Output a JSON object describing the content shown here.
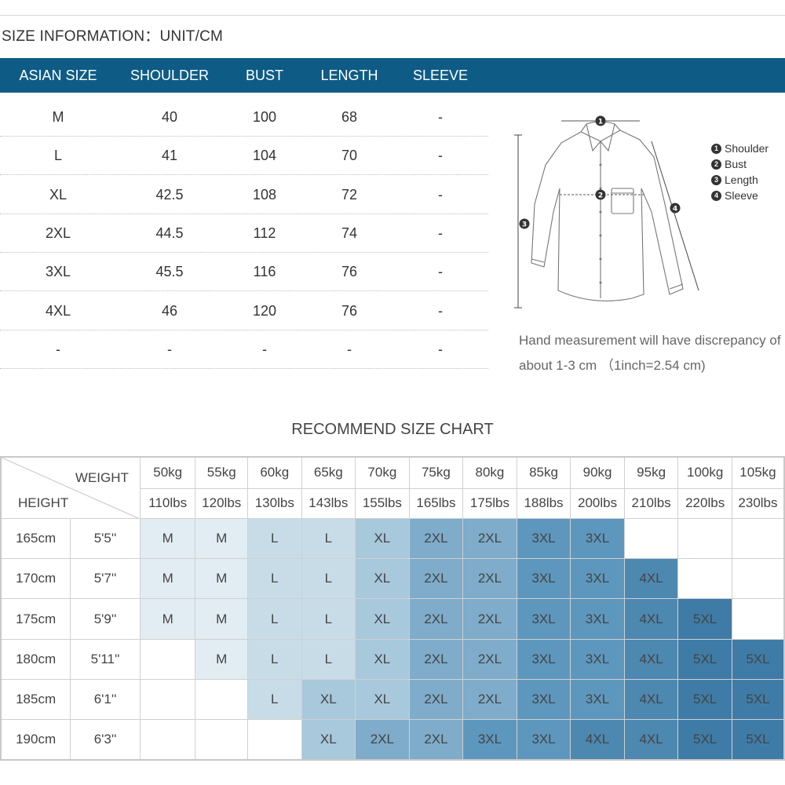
{
  "size_info": {
    "title": "SIZE INFORMATION：UNIT/CM",
    "headers": [
      "ASIAN SIZE",
      "SHOULDER",
      "BUST",
      "LENGTH",
      "SLEEVE"
    ],
    "rows": [
      [
        "M",
        "40",
        "100",
        "68",
        "-"
      ],
      [
        "L",
        "41",
        "104",
        "70",
        "-"
      ],
      [
        "XL",
        "42.5",
        "108",
        "72",
        "-"
      ],
      [
        "2XL",
        "44.5",
        "112",
        "74",
        "-"
      ],
      [
        "3XL",
        "45.5",
        "116",
        "76",
        "-"
      ],
      [
        "4XL",
        "46",
        "120",
        "76",
        "-"
      ],
      [
        "-",
        "-",
        "-",
        "-",
        "-"
      ]
    ]
  },
  "diagram": {
    "labels": [
      {
        "num": "1",
        "text": "Shoulder"
      },
      {
        "num": "2",
        "text": "Bust"
      },
      {
        "num": "3",
        "text": "Length"
      },
      {
        "num": "4",
        "text": "Sleeve"
      }
    ]
  },
  "note": {
    "line1": "Hand measurement will have discrepancy of",
    "line2": "about 1-3 cm （1inch=2.54 cm)"
  },
  "recommend": {
    "title": "RECOMMEND SIZE CHART",
    "weight_label": "WEIGHT",
    "height_label": "HEIGHT",
    "weights_kg": [
      "50kg",
      "55kg",
      "60kg",
      "65kg",
      "70kg",
      "75kg",
      "80kg",
      "85kg",
      "90kg",
      "95kg",
      "100kg",
      "105kg"
    ],
    "weights_lbs": [
      "110lbs",
      "120lbs",
      "130lbs",
      "143lbs",
      "155lbs",
      "165lbs",
      "175lbs",
      "188lbs",
      "200lbs",
      "210lbs",
      "220lbs",
      "230lbs"
    ],
    "rows": [
      {
        "cm": "165cm",
        "ft": "5'5''",
        "sizes": [
          "M",
          "M",
          "L",
          "L",
          "XL",
          "2XL",
          "2XL",
          "3XL",
          "3XL",
          "",
          "",
          ""
        ]
      },
      {
        "cm": "170cm",
        "ft": "5'7''",
        "sizes": [
          "M",
          "M",
          "L",
          "L",
          "XL",
          "2XL",
          "2XL",
          "3XL",
          "3XL",
          "4XL",
          "",
          ""
        ]
      },
      {
        "cm": "175cm",
        "ft": "5'9''",
        "sizes": [
          "M",
          "M",
          "L",
          "L",
          "XL",
          "2XL",
          "2XL",
          "3XL",
          "3XL",
          "4XL",
          "5XL",
          ""
        ]
      },
      {
        "cm": "180cm",
        "ft": "5'11''",
        "sizes": [
          "",
          "M",
          "L",
          "L",
          "XL",
          "2XL",
          "2XL",
          "3XL",
          "3XL",
          "4XL",
          "5XL",
          "5XL"
        ]
      },
      {
        "cm": "185cm",
        "ft": "6'1''",
        "sizes": [
          "",
          "",
          "L",
          "XL",
          "XL",
          "2XL",
          "2XL",
          "3XL",
          "3XL",
          "4XL",
          "5XL",
          "5XL"
        ]
      },
      {
        "cm": "190cm",
        "ft": "6'3''",
        "sizes": [
          "",
          "",
          "",
          "XL",
          "2XL",
          "2XL",
          "3XL",
          "3XL",
          "4XL",
          "4XL",
          "5XL",
          "5XL"
        ]
      }
    ]
  },
  "colors": {
    "header_bar": "#0e5c86",
    "M": "#e2ecf3",
    "L": "#c8dce8",
    "XL": "#a8c8dc",
    "2XL": "#7eacca",
    "3XL": "#5e97bd",
    "4XL": "#4d88b1",
    "5XL": "#3e7ca7"
  }
}
